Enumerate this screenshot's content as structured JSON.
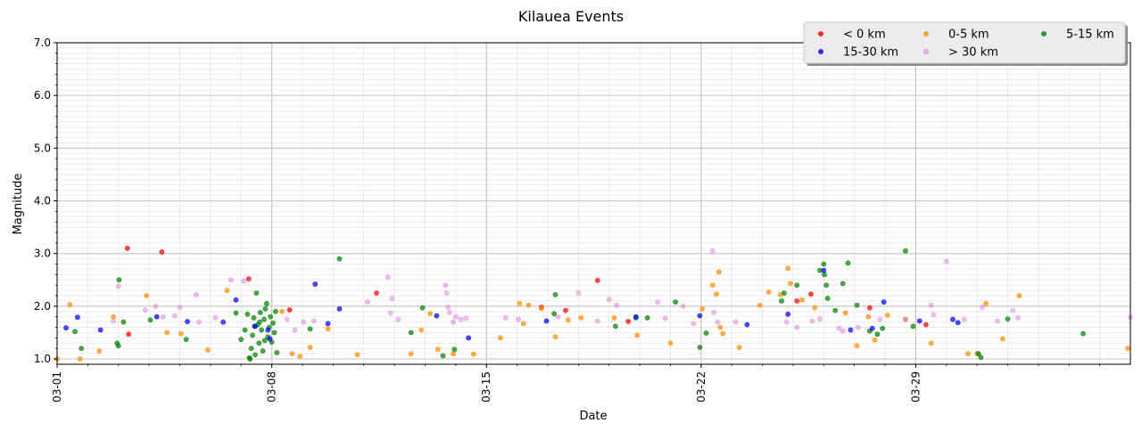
{
  "chart_data": {
    "type": "scatter",
    "title": "Kilauea Events",
    "xlabel": "Date",
    "ylabel": "Magnitude",
    "xlim": [
      "2021-03-01",
      "2021-04-05"
    ],
    "ylim": [
      0.9,
      7.0
    ],
    "yticks": [
      1.0,
      2.0,
      3.0,
      4.0,
      5.0,
      6.0,
      7.0
    ],
    "ytick_labels": [
      "1.0",
      "2.0",
      "3.0",
      "4.0",
      "5.0",
      "6.0",
      "7.0"
    ],
    "xticks": [
      "2021-03-01",
      "2021-03-08",
      "2021-03-15",
      "2021-03-22",
      "2021-03-29"
    ],
    "xtick_labels": [
      "03-01",
      "03-08",
      "03-15",
      "03-22",
      "03-29"
    ],
    "grid": true,
    "legend_placement": "top-right",
    "series": [
      {
        "name": "< 0 km",
        "color": "#ff0000",
        "points": [
          [
            "2021-03-03T07:00",
            3.1
          ],
          [
            "2021-03-03T08:00",
            1.47
          ],
          [
            "2021-03-04T10:00",
            3.03
          ],
          [
            "2021-03-07T06:00",
            2.52
          ],
          [
            "2021-03-08T14:00",
            1.93
          ],
          [
            "2021-03-11T10:00",
            2.25
          ],
          [
            "2021-03-16T19:00",
            1.98
          ],
          [
            "2021-03-17T14:00",
            1.92
          ],
          [
            "2021-03-18T15:00",
            2.49
          ],
          [
            "2021-03-19T15:00",
            1.71
          ],
          [
            "2021-03-25T14:00",
            2.23
          ],
          [
            "2021-03-27T12:00",
            1.97
          ],
          [
            "2021-03-29T08:00",
            1.65
          ],
          [
            "2021-03-25T03:00",
            2.1
          ]
        ]
      },
      {
        "name": "0-5 km",
        "color": "#ff8c00",
        "points": [
          [
            "2021-03-01T00:00",
            1.0
          ],
          [
            "2021-03-01T10:00",
            2.03
          ],
          [
            "2021-03-01T18:00",
            1.0
          ],
          [
            "2021-03-02T09:00",
            1.15
          ],
          [
            "2021-03-02T20:00",
            1.8
          ],
          [
            "2021-03-03T22:00",
            2.2
          ],
          [
            "2021-03-04T14:00",
            1.5
          ],
          [
            "2021-03-05T01:00",
            1.48
          ],
          [
            "2021-03-05T22:00",
            1.17
          ],
          [
            "2021-03-06T13:00",
            2.3
          ],
          [
            "2021-03-08T08:00",
            1.9
          ],
          [
            "2021-03-08T16:00",
            1.1
          ],
          [
            "2021-03-08T22:00",
            1.05
          ],
          [
            "2021-03-09T06:00",
            1.22
          ],
          [
            "2021-03-09T20:00",
            1.57
          ],
          [
            "2021-03-10T19:00",
            1.08
          ],
          [
            "2021-03-12T13:00",
            1.1
          ],
          [
            "2021-03-12T21:00",
            1.55
          ],
          [
            "2021-03-13T04:00",
            1.86
          ],
          [
            "2021-03-13T10:00",
            1.18
          ],
          [
            "2021-03-13T22:00",
            1.1
          ],
          [
            "2021-03-14T14:00",
            1.09
          ],
          [
            "2021-03-15T11:00",
            1.4
          ],
          [
            "2021-03-16T02:00",
            2.05
          ],
          [
            "2021-03-16T05:00",
            1.67
          ],
          [
            "2021-03-16T09:00",
            2.02
          ],
          [
            "2021-03-16T19:00",
            1.96
          ],
          [
            "2021-03-17T06:00",
            1.42
          ],
          [
            "2021-03-17T16:00",
            1.74
          ],
          [
            "2021-03-18T02:00",
            1.78
          ],
          [
            "2021-03-19T04:00",
            1.78
          ],
          [
            "2021-03-19T22:00",
            1.45
          ],
          [
            "2021-03-21T00:00",
            1.3
          ],
          [
            "2021-03-22T01:00",
            1.95
          ],
          [
            "2021-03-22T09:00",
            2.4
          ],
          [
            "2021-03-22T12:00",
            2.23
          ],
          [
            "2021-03-22T14:00",
            2.65
          ],
          [
            "2021-03-22T15:00",
            1.6
          ],
          [
            "2021-03-22T17:00",
            1.48
          ],
          [
            "2021-03-23T06:00",
            1.22
          ],
          [
            "2021-03-23T22:00",
            2.02
          ],
          [
            "2021-03-24T05:00",
            2.27
          ],
          [
            "2021-03-24T14:00",
            2.22
          ],
          [
            "2021-03-24T20:00",
            2.72
          ],
          [
            "2021-03-24T22:00",
            2.43
          ],
          [
            "2021-03-25T07:00",
            2.12
          ],
          [
            "2021-03-25T17:00",
            1.97
          ],
          [
            "2021-03-26T17:00",
            1.87
          ],
          [
            "2021-03-27T02:00",
            1.25
          ],
          [
            "2021-03-27T11:00",
            1.8
          ],
          [
            "2021-03-27T16:00",
            1.36
          ],
          [
            "2021-03-28T02:00",
            1.83
          ],
          [
            "2021-03-28T16:00",
            1.75
          ],
          [
            "2021-03-29T12:00",
            1.3
          ],
          [
            "2021-03-30T17:00",
            1.1
          ],
          [
            "2021-03-31T00:00",
            1.1
          ],
          [
            "2021-03-31T07:00",
            2.05
          ],
          [
            "2021-03-31T20:00",
            1.38
          ],
          [
            "2021-04-01T09:00",
            2.2
          ],
          [
            "2021-04-04T22:00",
            1.2
          ]
        ]
      },
      {
        "name": "5-15 km",
        "color": "#008000",
        "points": [
          [
            "2021-03-01T14:00",
            1.52
          ],
          [
            "2021-03-01T19:00",
            1.2
          ],
          [
            "2021-03-02T23:00",
            1.3
          ],
          [
            "2021-03-03T00:00",
            1.25
          ],
          [
            "2021-03-03T00:30",
            2.5
          ],
          [
            "2021-03-03T04:00",
            1.7
          ],
          [
            "2021-03-04T01:00",
            1.74
          ],
          [
            "2021-03-05T05:00",
            1.37
          ],
          [
            "2021-03-06T20:00",
            1.87
          ],
          [
            "2021-03-07T00:00",
            1.37
          ],
          [
            "2021-03-07T03:00",
            1.55
          ],
          [
            "2021-03-07T05:00",
            1.85
          ],
          [
            "2021-03-07T07:00",
            1.0
          ],
          [
            "2021-03-07T08:00",
            1.2
          ],
          [
            "2021-03-07T09:00",
            1.45
          ],
          [
            "2021-03-07T10:00",
            1.78
          ],
          [
            "2021-03-07T11:00",
            1.08
          ],
          [
            "2021-03-07T12:00",
            2.25
          ],
          [
            "2021-03-07T13:00",
            1.65
          ],
          [
            "2021-03-07T14:00",
            1.3
          ],
          [
            "2021-03-07T15:00",
            1.88
          ],
          [
            "2021-03-07T16:00",
            1.55
          ],
          [
            "2021-03-07T17:00",
            1.15
          ],
          [
            "2021-03-07T18:00",
            1.75
          ],
          [
            "2021-03-07T19:00",
            1.95
          ],
          [
            "2021-03-07T20:00",
            2.05
          ],
          [
            "2021-03-07T21:00",
            1.42
          ],
          [
            "2021-03-07T22:00",
            1.6
          ],
          [
            "2021-03-07T23:00",
            1.8
          ],
          [
            "2021-03-08T00:00",
            1.32
          ],
          [
            "2021-03-08T01:00",
            1.68
          ],
          [
            "2021-03-08T02:00",
            1.5
          ],
          [
            "2021-03-08T03:00",
            1.9
          ],
          [
            "2021-03-08T04:00",
            1.12
          ],
          [
            "2021-03-07T06:30",
            1.02
          ],
          [
            "2021-03-07T10:30",
            1.62
          ],
          [
            "2021-03-07T14:30",
            1.7
          ],
          [
            "2021-03-07T18:30",
            1.35
          ],
          [
            "2021-03-09T06:00",
            1.57
          ],
          [
            "2021-03-10T05:00",
            2.9
          ],
          [
            "2021-03-12T13:00",
            1.5
          ],
          [
            "2021-03-12T22:00",
            1.97
          ],
          [
            "2021-03-13T14:00",
            1.06
          ],
          [
            "2021-03-13T23:00",
            1.18
          ],
          [
            "2021-03-17T06:00",
            2.22
          ],
          [
            "2021-03-17T05:00",
            1.86
          ],
          [
            "2021-03-19T05:00",
            1.62
          ],
          [
            "2021-03-19T21:00",
            1.78
          ],
          [
            "2021-03-20T06:00",
            1.78
          ],
          [
            "2021-03-21T04:00",
            2.08
          ],
          [
            "2021-03-21T23:00",
            1.22
          ],
          [
            "2021-03-22T04:00",
            1.49
          ],
          [
            "2021-03-24T15:00",
            2.1
          ],
          [
            "2021-03-24T17:00",
            2.25
          ],
          [
            "2021-03-25T03:00",
            2.4
          ],
          [
            "2021-03-25T21:00",
            2.68
          ],
          [
            "2021-03-26T00:00",
            2.8
          ],
          [
            "2021-03-26T00:30",
            2.6
          ],
          [
            "2021-03-26T02:00",
            2.4
          ],
          [
            "2021-03-26T03:00",
            2.15
          ],
          [
            "2021-03-26T09:00",
            1.92
          ],
          [
            "2021-03-26T15:00",
            2.43
          ],
          [
            "2021-03-26T19:00",
            2.82
          ],
          [
            "2021-03-27T02:00",
            2.02
          ],
          [
            "2021-03-27T12:00",
            1.53
          ],
          [
            "2021-03-27T18:00",
            1.47
          ],
          [
            "2021-03-27T22:00",
            1.58
          ],
          [
            "2021-03-28T16:00",
            3.05
          ],
          [
            "2021-03-28T22:00",
            1.62
          ],
          [
            "2021-03-31T01:00",
            1.1
          ],
          [
            "2021-03-31T03:00",
            1.03
          ],
          [
            "2021-04-01T00:00",
            1.76
          ],
          [
            "2021-04-03T11:00",
            1.48
          ]
        ]
      },
      {
        "name": "15-30 km",
        "color": "#0000ff",
        "points": [
          [
            "2021-03-01T07:00",
            1.59
          ],
          [
            "2021-03-01T16:00",
            1.79
          ],
          [
            "2021-03-02T10:00",
            1.55
          ],
          [
            "2021-03-04T06:00",
            1.8
          ],
          [
            "2021-03-05T06:00",
            1.71
          ],
          [
            "2021-03-06T10:00",
            1.7
          ],
          [
            "2021-03-06T20:00",
            2.12
          ],
          [
            "2021-03-07T11:00",
            1.62
          ],
          [
            "2021-03-07T21:00",
            1.55
          ],
          [
            "2021-03-07T22:30",
            1.38
          ],
          [
            "2021-03-09T10:00",
            2.42
          ],
          [
            "2021-03-09T20:00",
            1.67
          ],
          [
            "2021-03-10T05:00",
            1.95
          ],
          [
            "2021-03-13T09:00",
            1.82
          ],
          [
            "2021-03-14T10:00",
            1.4
          ],
          [
            "2021-03-16T23:00",
            1.72
          ],
          [
            "2021-03-19T21:00",
            1.8
          ],
          [
            "2021-03-21T23:00",
            1.82
          ],
          [
            "2021-03-23T12:00",
            1.65
          ],
          [
            "2021-03-24T20:00",
            1.85
          ],
          [
            "2021-03-26T00:00",
            2.68
          ],
          [
            "2021-03-26T21:00",
            1.55
          ],
          [
            "2021-03-27T14:00",
            1.58
          ],
          [
            "2021-03-27T23:00",
            2.08
          ],
          [
            "2021-03-29T03:00",
            1.72
          ],
          [
            "2021-03-30T05:00",
            1.75
          ],
          [
            "2021-03-30T09:00",
            1.69
          ]
        ]
      },
      {
        "name": "> 30 km",
        "color": "#da70d6",
        "points": [
          [
            "2021-03-02T20:00",
            1.72
          ],
          [
            "2021-03-03T00:00",
            2.38
          ],
          [
            "2021-03-03T21:00",
            1.93
          ],
          [
            "2021-03-04T05:00",
            2.0
          ],
          [
            "2021-03-04T11:00",
            1.8
          ],
          [
            "2021-03-04T20:00",
            1.82
          ],
          [
            "2021-03-05T00:00",
            1.98
          ],
          [
            "2021-03-05T13:00",
            2.22
          ],
          [
            "2021-03-05T15:00",
            1.7
          ],
          [
            "2021-03-06T04:00",
            1.78
          ],
          [
            "2021-03-06T16:00",
            2.5
          ],
          [
            "2021-03-07T02:00",
            2.48
          ],
          [
            "2021-03-08T12:00",
            1.75
          ],
          [
            "2021-03-08T18:00",
            1.55
          ],
          [
            "2021-03-09T01:00",
            1.7
          ],
          [
            "2021-03-09T09:00",
            1.72
          ],
          [
            "2021-03-11T03:00",
            2.08
          ],
          [
            "2021-03-11T19:00",
            2.55
          ],
          [
            "2021-03-11T21:00",
            1.87
          ],
          [
            "2021-03-11T22:00",
            2.15
          ],
          [
            "2021-03-12T03:00",
            1.75
          ],
          [
            "2021-03-13T16:00",
            2.4
          ],
          [
            "2021-03-13T17:00",
            2.25
          ],
          [
            "2021-03-13T18:00",
            1.98
          ],
          [
            "2021-03-13T19:00",
            1.88
          ],
          [
            "2021-03-13T22:00",
            1.7
          ],
          [
            "2021-03-14T00:00",
            1.8
          ],
          [
            "2021-03-14T04:00",
            1.75
          ],
          [
            "2021-03-14T08:00",
            1.77
          ],
          [
            "2021-03-15T15:00",
            1.78
          ],
          [
            "2021-03-16T01:00",
            1.75
          ],
          [
            "2021-03-17T08:00",
            1.8
          ],
          [
            "2021-03-18T00:00",
            2.25
          ],
          [
            "2021-03-18T15:00",
            1.72
          ],
          [
            "2021-03-19T00:00",
            2.13
          ],
          [
            "2021-03-19T06:00",
            2.02
          ],
          [
            "2021-03-20T14:00",
            2.08
          ],
          [
            "2021-03-20T20:00",
            1.77
          ],
          [
            "2021-03-21T10:00",
            2.0
          ],
          [
            "2021-03-21T18:00",
            1.67
          ],
          [
            "2021-03-22T09:00",
            3.05
          ],
          [
            "2021-03-22T10:00",
            1.88
          ],
          [
            "2021-03-22T13:00",
            1.7
          ],
          [
            "2021-03-23T03:00",
            1.7
          ],
          [
            "2021-03-24T19:00",
            1.7
          ],
          [
            "2021-03-25T03:00",
            1.6
          ],
          [
            "2021-03-25T15:00",
            1.72
          ],
          [
            "2021-03-25T21:00",
            1.76
          ],
          [
            "2021-03-26T12:00",
            1.58
          ],
          [
            "2021-03-26T15:00",
            1.53
          ],
          [
            "2021-03-27T03:00",
            1.6
          ],
          [
            "2021-03-27T20:00",
            1.75
          ],
          [
            "2021-03-28T16:00",
            1.75
          ],
          [
            "2021-03-29T12:00",
            2.02
          ],
          [
            "2021-03-29T14:00",
            1.84
          ],
          [
            "2021-03-30T00:00",
            2.85
          ],
          [
            "2021-03-30T14:00",
            1.75
          ],
          [
            "2021-03-31T04:00",
            1.98
          ],
          [
            "2021-03-31T16:00",
            1.72
          ],
          [
            "2021-04-01T04:00",
            1.92
          ],
          [
            "2021-04-01T08:00",
            1.78
          ],
          [
            "2021-04-05T00:00",
            1.79
          ]
        ]
      }
    ]
  }
}
